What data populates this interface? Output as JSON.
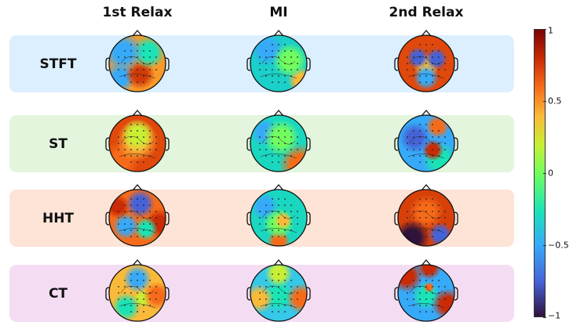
{
  "columns": [
    "1st Relax",
    "MI",
    "2nd Relax"
  ],
  "rows": [
    {
      "label": "STFT",
      "band_color": "#dcefff"
    },
    {
      "label": "ST",
      "band_color": "#e3f5dc"
    },
    {
      "label": "HHT",
      "band_color": "#fde4d6"
    },
    {
      "label": "CT",
      "band_color": "#f4ddf3"
    }
  ],
  "colorbar": {
    "colormap": "turbo",
    "range": [
      -1,
      1
    ],
    "ticks": [
      "1",
      "0.5",
      "0",
      "−0.5",
      "−1"
    ]
  }
}
